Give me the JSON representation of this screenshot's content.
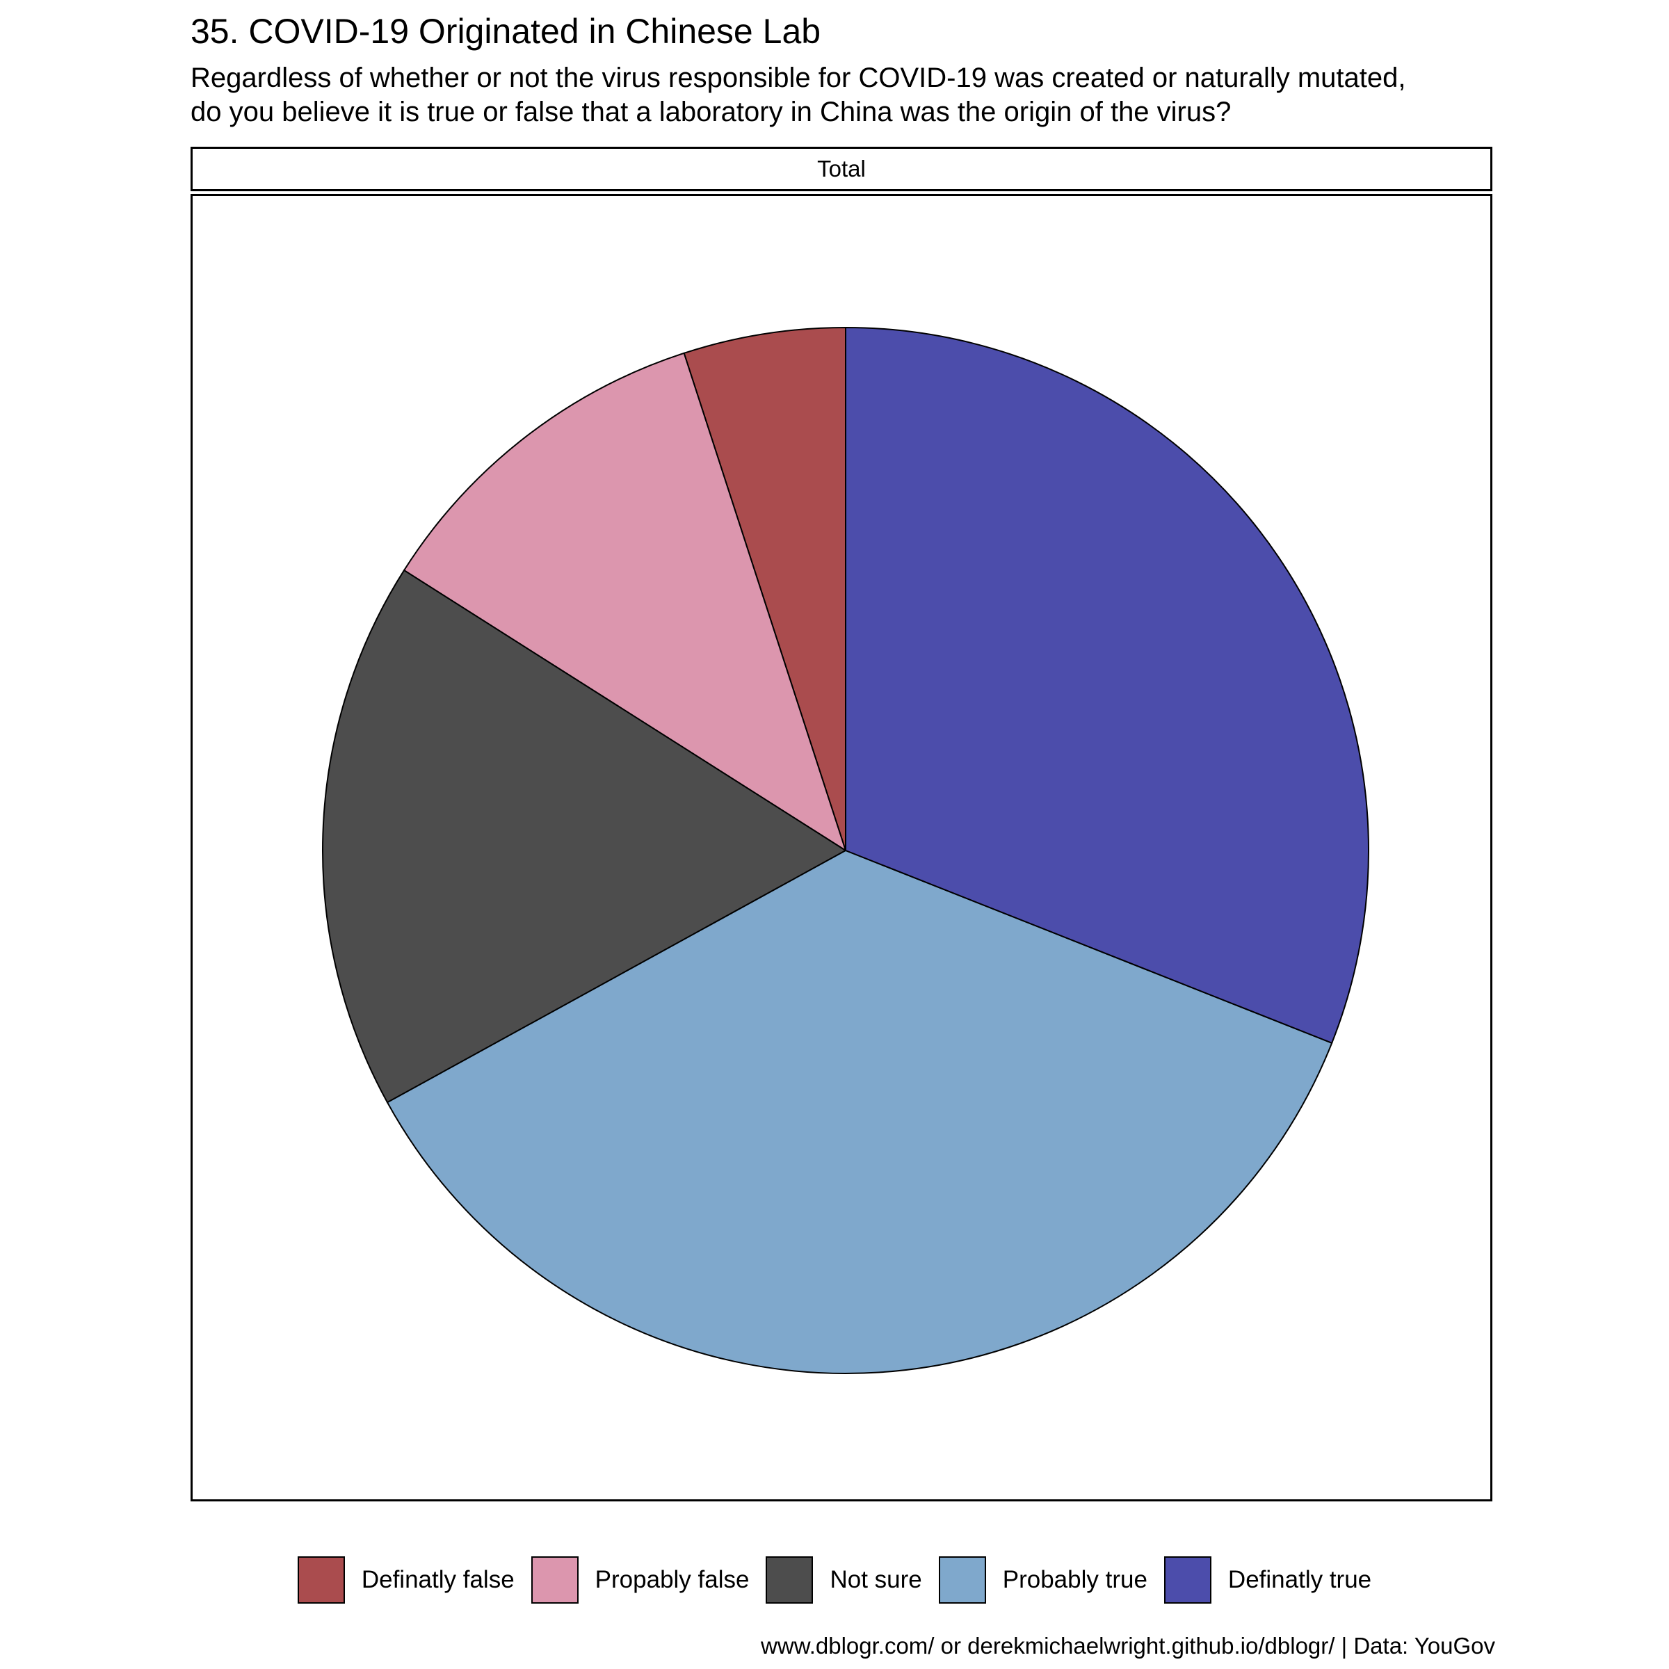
{
  "title": "35. COVID-19 Originated in Chinese Lab",
  "subtitle_line1": "Regardless of whether or not the virus responsible for COVID-19 was created or naturally mutated,",
  "subtitle_line2": "do you believe it is true or false that a laboratory in China was the origin of the virus?",
  "facet_label": "Total",
  "caption": "www.dblogr.com/ or derekmichaelwright.github.io/dblogr/ | Data: YouGov",
  "chart_data": {
    "type": "pie",
    "title": "35. COVID-19 Originated in Chinese Lab",
    "facet": "Total",
    "categories": [
      "Definatly false",
      "Propably false",
      "Not sure",
      "Probably true",
      "Definatly true"
    ],
    "values": [
      5,
      11,
      17,
      36,
      31
    ],
    "colors": [
      "#aa4c4e",
      "#dc96ae",
      "#4d4d4d",
      "#7fa8cc",
      "#4c4dab"
    ],
    "start": "12 o'clock",
    "direction": "counterclockwise",
    "legend_position": "bottom"
  }
}
